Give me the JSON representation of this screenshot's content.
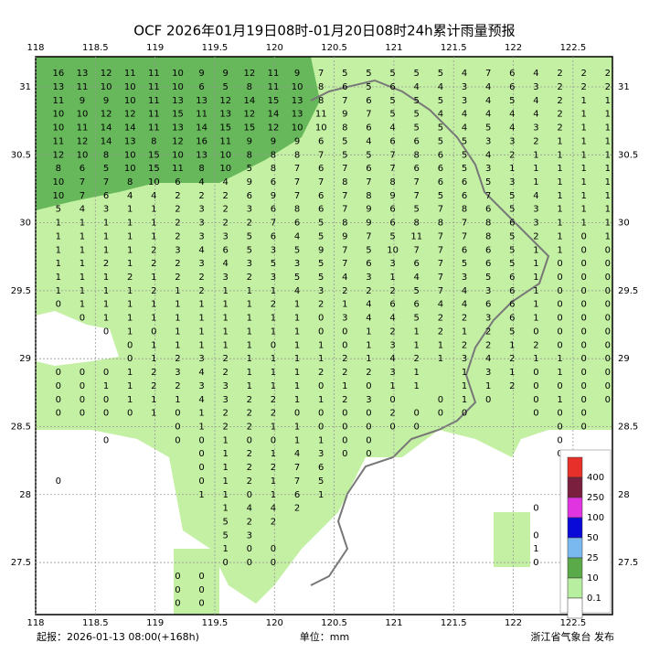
{
  "header": {
    "title": "OCF 2026年01月19日08时-01月20日08时24h累计雨量预报"
  },
  "map": {
    "lon_lim": [
      118,
      122.83
    ],
    "lat_lim": [
      27.117,
      31.222
    ],
    "lon_ticks": [
      118,
      118.5,
      119,
      119.5,
      120,
      120.5,
      121,
      121.5,
      122,
      122.5
    ],
    "lat_ticks": [
      31,
      30.5,
      30,
      29.5,
      29,
      28.5,
      28,
      27.5
    ],
    "grid_lon_start": 118.19,
    "grid_lon_step": 0.2,
    "grid_lat_start": 31.1,
    "grid_lat_step": 0.1,
    "rows": [
      [
        16,
        13,
        12,
        11,
        11,
        10,
        9,
        9,
        12,
        11,
        9,
        7,
        5,
        5,
        5,
        5,
        5,
        4,
        7,
        6,
        4,
        2,
        2,
        2
      ],
      [
        13,
        11,
        10,
        10,
        11,
        10,
        6,
        5,
        8,
        11,
        10,
        8,
        6,
        5,
        6,
        4,
        4,
        3,
        4,
        6,
        3,
        2,
        2,
        2
      ],
      [
        11,
        9,
        9,
        10,
        11,
        13,
        13,
        12,
        14,
        15,
        13,
        8,
        7,
        6,
        5,
        5,
        5,
        3,
        4,
        5,
        4,
        2,
        1,
        1
      ],
      [
        10,
        10,
        12,
        12,
        11,
        15,
        11,
        13,
        12,
        14,
        13,
        11,
        9,
        7,
        5,
        5,
        4,
        4,
        4,
        4,
        4,
        2,
        1,
        1
      ],
      [
        10,
        11,
        14,
        14,
        11,
        13,
        14,
        15,
        15,
        12,
        10,
        10,
        8,
        6,
        4,
        5,
        5,
        4,
        5,
        4,
        3,
        2,
        1,
        1
      ],
      [
        11,
        12,
        14,
        13,
        8,
        12,
        16,
        11,
        9,
        9,
        9,
        6,
        5,
        4,
        6,
        6,
        5,
        5,
        3,
        3,
        2,
        1,
        1,
        1
      ],
      [
        12,
        10,
        8,
        10,
        15,
        10,
        13,
        10,
        8,
        8,
        8,
        7,
        5,
        5,
        7,
        8,
        6,
        5,
        4,
        2,
        1,
        1,
        1,
        1
      ],
      [
        8,
        6,
        5,
        10,
        15,
        11,
        8,
        10,
        5,
        8,
        7,
        6,
        7,
        6,
        7,
        6,
        6,
        5,
        3,
        1,
        1,
        1,
        1,
        1
      ],
      [
        10,
        7,
        7,
        8,
        10,
        6,
        4,
        4,
        9,
        6,
        7,
        7,
        8,
        7,
        8,
        7,
        6,
        6,
        5,
        3,
        1,
        1,
        1,
        1
      ],
      [
        10,
        7,
        6,
        4,
        4,
        2,
        2,
        2,
        6,
        9,
        7,
        6,
        7,
        8,
        9,
        7,
        5,
        6,
        7,
        5,
        4,
        1,
        1,
        1
      ],
      [
        5,
        4,
        3,
        1,
        1,
        2,
        3,
        2,
        3,
        6,
        8,
        6,
        7,
        9,
        6,
        5,
        7,
        8,
        6,
        5,
        3,
        1,
        1,
        1
      ],
      [
        1,
        1,
        1,
        1,
        1,
        2,
        3,
        2,
        2,
        7,
        6,
        5,
        8,
        9,
        6,
        8,
        8,
        7,
        8,
        6,
        3,
        1,
        1,
        1
      ],
      [
        1,
        1,
        1,
        1,
        1,
        2,
        3,
        3,
        5,
        6,
        4,
        5,
        9,
        7,
        5,
        11,
        7,
        7,
        8,
        5,
        2,
        1,
        0,
        1
      ],
      [
        1,
        1,
        1,
        1,
        2,
        3,
        4,
        6,
        5,
        3,
        5,
        9,
        7,
        5,
        10,
        7,
        7,
        6,
        6,
        5,
        1,
        1,
        0,
        0
      ],
      [
        1,
        1,
        2,
        1,
        2,
        2,
        3,
        4,
        3,
        5,
        3,
        5,
        7,
        6,
        3,
        6,
        7,
        5,
        6,
        5,
        1,
        0,
        0,
        0
      ],
      [
        1,
        1,
        1,
        2,
        1,
        2,
        2,
        3,
        2,
        3,
        5,
        5,
        4,
        3,
        1,
        4,
        7,
        3,
        5,
        6,
        1,
        0,
        0,
        0
      ],
      [
        1,
        1,
        1,
        1,
        2,
        1,
        2,
        1,
        1,
        1,
        4,
        3,
        2,
        2,
        2,
        5,
        7,
        4,
        3,
        6,
        1,
        0,
        0,
        0
      ],
      [
        0,
        1,
        1,
        1,
        1,
        1,
        1,
        1,
        1,
        2,
        1,
        2,
        1,
        4,
        6,
        6,
        4,
        4,
        6,
        6,
        1,
        0,
        0,
        0
      ],
      [
        null,
        0,
        1,
        1,
        1,
        1,
        1,
        1,
        1,
        1,
        1,
        0,
        3,
        4,
        4,
        5,
        2,
        2,
        3,
        6,
        1,
        0,
        0,
        0
      ],
      [
        null,
        null,
        0,
        1,
        0,
        1,
        1,
        1,
        1,
        1,
        1,
        0,
        0,
        1,
        2,
        1,
        2,
        1,
        2,
        5,
        0,
        0,
        0,
        0
      ],
      [
        null,
        null,
        null,
        0,
        1,
        1,
        1,
        1,
        1,
        0,
        1,
        1,
        0,
        1,
        3,
        1,
        1,
        2,
        2,
        1,
        2,
        0,
        0,
        0
      ],
      [
        null,
        null,
        null,
        0,
        1,
        2,
        3,
        2,
        1,
        1,
        1,
        1,
        2,
        1,
        4,
        2,
        1,
        3,
        4,
        2,
        1,
        1,
        0,
        0
      ],
      [
        0,
        0,
        0,
        1,
        2,
        3,
        4,
        2,
        1,
        1,
        1,
        2,
        2,
        2,
        3,
        1,
        null,
        1,
        3,
        1,
        0,
        1,
        0,
        0
      ],
      [
        0,
        0,
        1,
        1,
        2,
        2,
        3,
        3,
        1,
        1,
        1,
        0,
        1,
        0,
        1,
        1,
        null,
        1,
        1,
        2,
        0,
        0,
        0,
        0
      ],
      [
        0,
        0,
        0,
        1,
        1,
        1,
        4,
        3,
        2,
        2,
        1,
        1,
        2,
        3,
        0,
        null,
        0,
        1,
        0,
        null,
        0,
        1,
        0,
        0
      ],
      [
        0,
        0,
        0,
        0,
        1,
        0,
        1,
        2,
        2,
        2,
        0,
        0,
        0,
        0,
        2,
        0,
        0,
        0,
        null,
        null,
        0,
        0,
        0,
        null
      ],
      [
        null,
        null,
        null,
        null,
        null,
        0,
        1,
        2,
        2,
        1,
        1,
        0,
        0,
        0,
        0,
        0,
        null,
        null,
        null,
        null,
        null,
        0,
        0,
        null
      ],
      [
        null,
        null,
        0,
        null,
        null,
        0,
        0,
        1,
        0,
        0,
        1,
        1,
        0,
        0,
        null,
        null,
        null,
        null,
        null,
        null,
        null,
        0,
        null,
        null
      ],
      [
        null,
        null,
        null,
        null,
        null,
        null,
        0,
        1,
        2,
        1,
        4,
        3,
        0,
        0,
        null,
        null,
        null,
        null,
        null,
        null,
        null,
        0,
        null,
        null
      ],
      [
        null,
        null,
        null,
        null,
        null,
        null,
        0,
        1,
        2,
        2,
        7,
        6,
        null,
        null,
        null,
        null,
        null,
        null,
        null,
        null,
        null,
        null,
        null,
        null
      ],
      [
        0,
        null,
        null,
        null,
        null,
        null,
        0,
        1,
        2,
        1,
        7,
        5,
        null,
        null,
        null,
        null,
        null,
        null,
        null,
        null,
        null,
        null,
        null,
        null
      ],
      [
        null,
        null,
        null,
        null,
        null,
        null,
        1,
        1,
        0,
        1,
        6,
        1,
        null,
        null,
        null,
        null,
        null,
        null,
        null,
        null,
        null,
        null,
        null,
        null
      ],
      [
        null,
        null,
        null,
        null,
        null,
        null,
        null,
        1,
        4,
        4,
        2,
        null,
        null,
        null,
        null,
        null,
        null,
        null,
        null,
        null,
        0,
        null,
        null,
        null
      ],
      [
        null,
        null,
        null,
        null,
        null,
        null,
        null,
        5,
        2,
        2,
        null,
        null,
        null,
        null,
        null,
        null,
        null,
        null,
        null,
        null,
        null,
        null,
        null,
        null
      ],
      [
        null,
        null,
        null,
        null,
        null,
        null,
        null,
        5,
        3,
        null,
        null,
        null,
        null,
        null,
        null,
        null,
        null,
        null,
        null,
        null,
        0,
        null,
        null,
        null
      ],
      [
        null,
        null,
        null,
        null,
        null,
        null,
        null,
        1,
        0,
        0,
        null,
        null,
        null,
        null,
        null,
        null,
        null,
        null,
        null,
        null,
        1,
        null,
        null,
        null
      ],
      [
        null,
        null,
        null,
        null,
        null,
        null,
        null,
        0,
        0,
        0,
        null,
        null,
        null,
        null,
        null,
        null,
        null,
        null,
        null,
        null,
        0,
        null,
        null,
        null
      ],
      [
        null,
        null,
        null,
        null,
        null,
        0,
        0,
        null,
        null,
        null,
        null,
        null,
        null,
        null,
        null,
        null,
        null,
        null,
        null,
        null,
        null,
        null,
        null,
        null
      ],
      [
        null,
        null,
        null,
        null,
        null,
        0,
        0,
        null,
        null,
        null,
        null,
        null,
        null,
        null,
        null,
        null,
        null,
        null,
        null,
        null,
        null,
        null,
        null,
        null
      ],
      [
        null,
        null,
        null,
        null,
        null,
        0,
        0,
        null,
        null,
        null,
        null,
        null,
        null,
        null,
        null,
        null,
        null,
        null,
        null,
        null,
        null,
        null,
        null,
        null
      ]
    ]
  },
  "legend": [
    {
      "label": 400,
      "color": "#e8302a"
    },
    {
      "label": 250,
      "color": "#7a1f3e"
    },
    {
      "label": 100,
      "color": "#e034e0"
    },
    {
      "label": 50,
      "color": "#0a0ad8"
    },
    {
      "label": 25,
      "color": "#7ab8f0"
    },
    {
      "label": 10,
      "color": "#5aaa4a"
    },
    {
      "label": 0.1,
      "color": "#b8eea0"
    }
  ],
  "footer": {
    "issued": "起报：2026-01-13 08:00(+168h)",
    "unit": "单位：mm",
    "publisher": "浙江省气象台 发布"
  }
}
